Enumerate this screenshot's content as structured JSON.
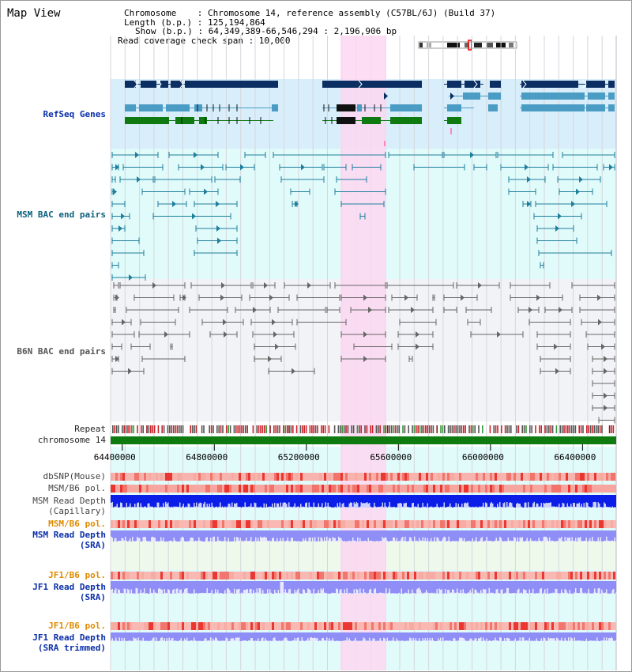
{
  "header": {
    "title": "Map View",
    "chromosome_line": "Chromosome    : Chromosome 14, reference assembly (C57BL/6J) (Build 37)",
    "length_line": "Length (b.p.) : 125,194,864",
    "show_line": "Show (b.p.) : 64,349,389-66,546,294 : 2,196,906 bp",
    "coverage_line": "Read coverage check span : 10,000"
  },
  "tracks": {
    "refseq": "RefSeq Genes",
    "msm_bac": "MSM BAC end pairs",
    "b6n_bac": "B6N BAC end pairs",
    "repeat": "Repeat",
    "chromosome": "chromosome 14",
    "dbsnp": "dbSNP(Mouse)",
    "msm_b6_pol_1": "MSM/B6 pol.",
    "msm_read_depth_cap": "MSM Read Depth\n(Capillary)",
    "msm_b6_pol_2": "MSM/B6 pol.",
    "msm_read_depth_sra": "MSM Read Depth\n(SRA)",
    "jf1_b6_pol_1": "JF1/B6 pol.",
    "jf1_read_depth_sra": "JF1 Read Depth\n(SRA)",
    "jf1_b6_pol_2": "JF1/B6 pol.",
    "jf1_read_depth_trim": "JF1 Read Depth\n(SRA trimmed)"
  },
  "axis": {
    "ticks": [
      "64400000",
      "64800000",
      "65200000",
      "65600000",
      "66000000",
      "66400000"
    ],
    "tick_values": [
      64400000,
      64800000,
      65200000,
      65600000,
      66000000,
      66400000
    ],
    "range": [
      64349389,
      66546294
    ]
  },
  "colors": {
    "highlight": "#fbd7f1",
    "refseq_bg": "#d8eefa",
    "msm_bg": "#e0fbfa",
    "b6n_bg": "#f2f3f6",
    "navy": "#0b2e63",
    "teal": "#4a9cc4",
    "green": "#0e7a10",
    "bac_teal": "#1f7e9c",
    "bac_gray": "#666666",
    "msm_depth_cap": "#0a1ee8",
    "sra_depth": "#8e8ef6"
  }
}
